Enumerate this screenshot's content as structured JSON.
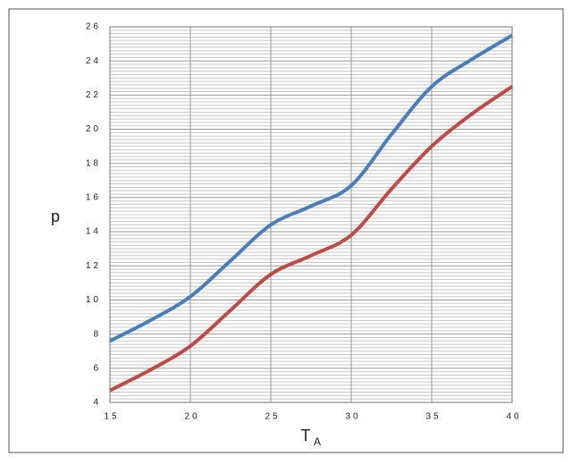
{
  "chart_data": {
    "type": "line",
    "x_label": "T",
    "x_label_sub": "A",
    "y_label": "p",
    "x": [
      15,
      17.5,
      20,
      22.5,
      25,
      27.5,
      30,
      32.5,
      35,
      37.5,
      40
    ],
    "series": [
      {
        "color": "#4a7ebb",
        "values": [
          7.6,
          8.8,
          10.2,
          12.3,
          14.4,
          15.5,
          16.7,
          19.7,
          22.5,
          24.1,
          25.5
        ]
      },
      {
        "color": "#be4b48",
        "values": [
          4.7,
          5.9,
          7.3,
          9.4,
          11.5,
          12.6,
          13.8,
          16.5,
          19.0,
          20.9,
          22.5
        ]
      }
    ],
    "xlim": [
      15,
      40
    ],
    "xticks": [
      15,
      20,
      25,
      30,
      35,
      40
    ],
    "ylim": [
      4,
      26
    ],
    "yticks": [
      4,
      6,
      8,
      10,
      12,
      14,
      16,
      18,
      20,
      22,
      24,
      26
    ],
    "grid": true,
    "minor_grid_per_major": 10
  }
}
